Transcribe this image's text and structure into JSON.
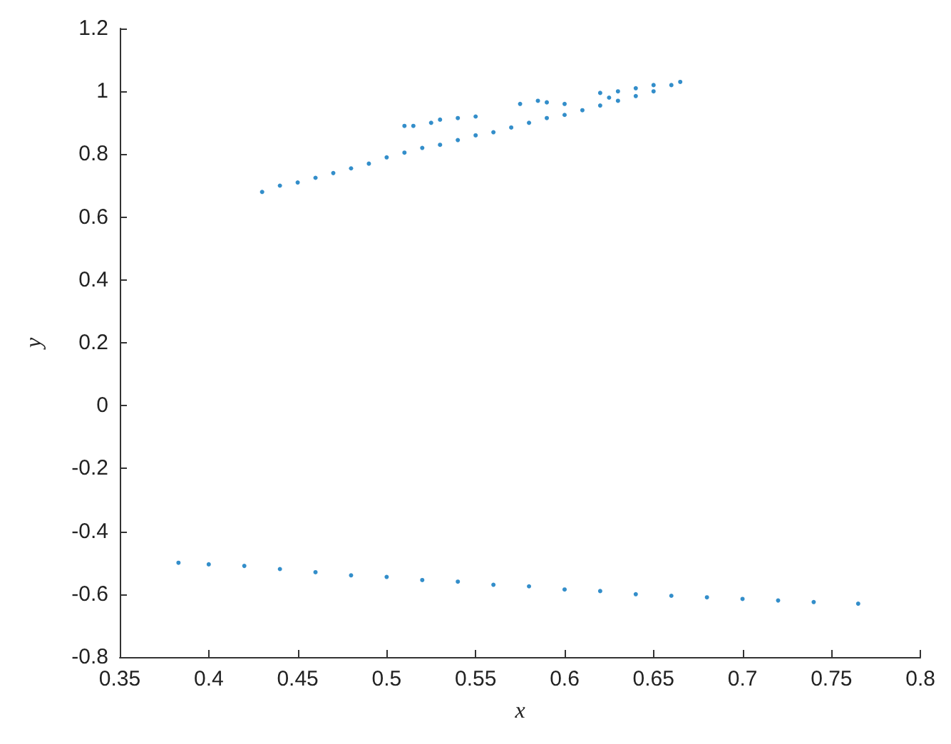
{
  "chart_data": {
    "type": "scatter",
    "xlabel": "x",
    "ylabel": "y",
    "marker": "circle",
    "grid": false,
    "xlim": [
      0.35,
      0.8
    ],
    "xticks": [
      0.35,
      0.4,
      0.45,
      0.5,
      0.55,
      0.6,
      0.65,
      0.7,
      0.75,
      0.8
    ],
    "ylim": [
      -0.8,
      1.2
    ],
    "yticks": [
      -0.8,
      -0.6,
      -0.4,
      -0.2,
      0,
      0.2,
      0.4,
      0.6,
      0.8,
      1,
      1.2
    ],
    "series": [
      {
        "color": "#0072bd",
        "x": [
          0.43,
          0.44,
          0.45,
          0.46,
          0.47,
          0.48,
          0.49,
          0.5,
          0.51,
          0.52,
          0.53,
          0.54,
          0.55,
          0.56,
          0.57,
          0.58,
          0.59,
          0.6,
          0.61,
          0.62,
          0.63,
          0.64,
          0.65,
          0.66,
          0.665,
          0.51,
          0.515,
          0.525,
          0.53,
          0.54,
          0.55,
          0.575,
          0.585,
          0.59,
          0.6,
          0.62,
          0.625,
          0.63,
          0.64,
          0.65,
          0.383,
          0.4,
          0.42,
          0.44,
          0.46,
          0.48,
          0.5,
          0.52,
          0.54,
          0.56,
          0.58,
          0.6,
          0.62,
          0.64,
          0.66,
          0.68,
          0.7,
          0.72,
          0.74,
          0.765
        ],
        "values": [
          0.68,
          0.7,
          0.71,
          0.725,
          0.74,
          0.755,
          0.77,
          0.79,
          0.805,
          0.82,
          0.83,
          0.845,
          0.86,
          0.87,
          0.885,
          0.9,
          0.915,
          0.925,
          0.94,
          0.955,
          0.97,
          0.985,
          1,
          1.02,
          1.03,
          0.89,
          0.89,
          0.9,
          0.91,
          0.915,
          0.92,
          0.96,
          0.97,
          0.965,
          0.96,
          0.995,
          0.98,
          1,
          1.01,
          1.02,
          -0.5,
          -0.505,
          -0.51,
          -0.52,
          -0.53,
          -0.54,
          -0.545,
          -0.555,
          -0.56,
          -0.57,
          -0.575,
          -0.585,
          -0.59,
          -0.6,
          -0.605,
          -0.61,
          -0.615,
          -0.62,
          -0.625,
          -0.63
        ]
      }
    ]
  }
}
